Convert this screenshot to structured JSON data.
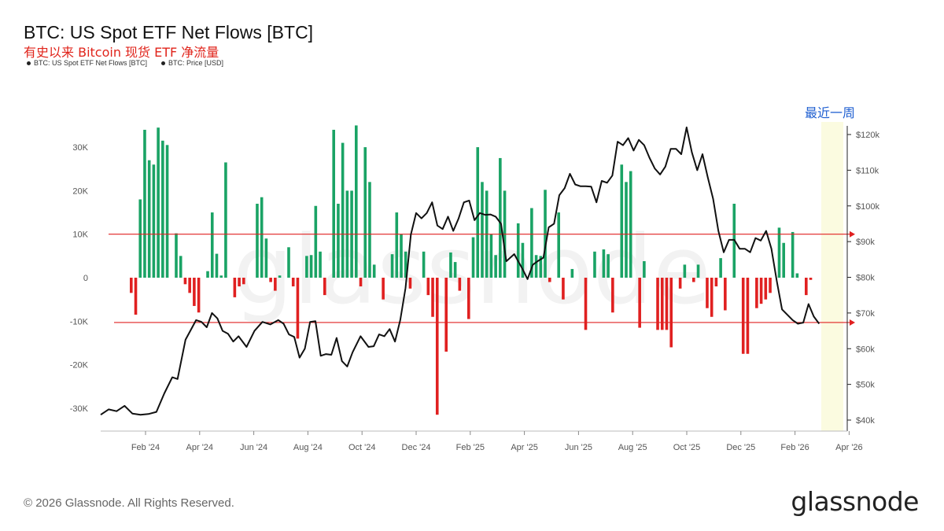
{
  "header": {
    "title": "BTC: US Spot ETF Net Flows [BTC]",
    "subtitle": "有史以来 Bitcoin 现货 ETF 净流量",
    "legend": [
      {
        "label": "BTC: US Spot ETF Net Flows [BTC]",
        "color": "#222222"
      },
      {
        "label": "BTC: Price [USD]",
        "color": "#222222"
      }
    ]
  },
  "annotation": {
    "recent_week": "最近一周"
  },
  "footer": {
    "copyright": "© 2026 Glassnode. All Rights Reserved.",
    "brand": "glassnode"
  },
  "watermark": "glassnode",
  "colors": {
    "inflow": "#1aa365",
    "outflow": "#e02020",
    "price": "#111111",
    "refline": "#e02020",
    "highlight": "#fbfbe0"
  },
  "chart_data": {
    "type": "bar",
    "title": "BTC: US Spot ETF Net Flows [BTC]",
    "x_tick_labels": [
      "Feb '24",
      "Apr '24",
      "Jun '24",
      "Aug '24",
      "Oct '24",
      "Dec '24",
      "Feb '25",
      "Apr '25",
      "Jun '25",
      "Aug '25",
      "Oct '25",
      "Dec '25",
      "Feb '26",
      "Apr '26"
    ],
    "y_left": {
      "ticks": [
        30000,
        20000,
        10000,
        0,
        -10000,
        -20000,
        -30000
      ],
      "tick_labels": [
        "30K",
        "20K",
        "10K",
        "0",
        "-10K",
        "-20K",
        "-30K"
      ],
      "range": [
        -35000,
        36000
      ]
    },
    "y_right": {
      "ticks": [
        120000,
        110000,
        100000,
        90000,
        80000,
        70000,
        60000,
        50000,
        40000
      ],
      "tick_labels": [
        "$120k",
        "$110k",
        "$100k",
        "$90k",
        "$80k",
        "$70k",
        "$60k",
        "$50k",
        "$40k"
      ],
      "range": [
        38000,
        125000
      ]
    },
    "reference_lines_btc": [
      10000,
      -10300
    ],
    "series": [
      {
        "name": "BTC: US Spot ETF Net Flows [BTC]",
        "axis": "left",
        "type": "bar",
        "values": [
          -3500,
          -8500,
          18000,
          34000,
          27000,
          26000,
          34500,
          31500,
          30500,
          0,
          10200,
          5000,
          -1500,
          -3500,
          -6500,
          -8000,
          0,
          1500,
          15000,
          5500,
          500,
          26500,
          0,
          -4500,
          -2000,
          -1500,
          0,
          0,
          17000,
          18500,
          9000,
          -1000,
          -3000,
          500,
          0,
          7000,
          -2000,
          -14000,
          0,
          5000,
          5200,
          16500,
          6000,
          -4000,
          0,
          34000,
          17000,
          31000,
          20000,
          20000,
          35000,
          -2000,
          30000,
          22000,
          3000,
          0,
          -5000,
          0,
          5400,
          15000,
          10000,
          6000,
          -2500,
          0,
          0,
          6000,
          -4000,
          -9000,
          -31500,
          0,
          -17000,
          5800,
          3600,
          -3000,
          0,
          -9500,
          9300,
          30000,
          22000,
          20000,
          10000,
          5200,
          27500,
          20000,
          0,
          0,
          12500,
          8000,
          0,
          16000,
          5200,
          5000,
          20200,
          -1000,
          0,
          15000,
          -5000,
          0,
          2000,
          0,
          0,
          -12000,
          0,
          6000,
          0,
          6500,
          5400,
          -8000,
          0,
          26000,
          22000,
          24500,
          0,
          -11500,
          3800,
          0,
          0,
          -12000,
          -12000,
          -12000,
          -16000,
          0,
          -2500,
          3000,
          0,
          -1000,
          3000,
          0,
          -7000,
          -9000,
          -2000,
          4500,
          -7500,
          0,
          17000,
          0,
          -17500,
          -17500,
          0,
          -7000,
          -6000,
          -5000,
          -3500,
          0,
          11500,
          8000,
          0,
          10500,
          1000,
          0,
          -4000,
          -500
        ]
      },
      {
        "name": "BTC: Price [USD]",
        "axis": "right",
        "type": "line",
        "points": [
          [
            0,
            41500
          ],
          [
            3,
            43000
          ],
          [
            6,
            42500
          ],
          [
            9,
            44000
          ],
          [
            12,
            41800
          ],
          [
            15,
            41500
          ],
          [
            18,
            41700
          ],
          [
            21,
            42300
          ],
          [
            24,
            47500
          ],
          [
            27,
            52000
          ],
          [
            29,
            51500
          ],
          [
            32,
            62500
          ],
          [
            36,
            68000
          ],
          [
            38,
            67500
          ],
          [
            40,
            66000
          ],
          [
            42,
            70000
          ],
          [
            44,
            68500
          ],
          [
            46,
            65000
          ],
          [
            48,
            64200
          ],
          [
            50,
            62000
          ],
          [
            52,
            63500
          ],
          [
            55,
            60500
          ],
          [
            58,
            65000
          ],
          [
            61,
            67500
          ],
          [
            64,
            66800
          ],
          [
            67,
            68000
          ],
          [
            69,
            67000
          ],
          [
            71,
            64000
          ],
          [
            73,
            63300
          ],
          [
            75,
            57500
          ],
          [
            77,
            60000
          ],
          [
            79,
            67500
          ],
          [
            81,
            67700
          ],
          [
            83,
            58000
          ],
          [
            85,
            58500
          ],
          [
            87,
            58300
          ],
          [
            89,
            63000
          ],
          [
            91,
            56500
          ],
          [
            93,
            55000
          ],
          [
            95,
            59000
          ],
          [
            98,
            63500
          ],
          [
            101,
            60500
          ],
          [
            103,
            60700
          ],
          [
            105,
            64000
          ],
          [
            107,
            63500
          ],
          [
            109,
            65500
          ],
          [
            111,
            62000
          ],
          [
            113,
            68000
          ],
          [
            115,
            77000
          ],
          [
            117,
            92000
          ],
          [
            119,
            98000
          ],
          [
            121,
            96500
          ],
          [
            123,
            98000
          ],
          [
            125,
            101000
          ],
          [
            127,
            94500
          ],
          [
            129,
            93500
          ],
          [
            131,
            97000
          ],
          [
            133,
            93000
          ],
          [
            135,
            96500
          ],
          [
            137,
            101000
          ],
          [
            139,
            101500
          ],
          [
            141,
            96000
          ],
          [
            143,
            98000
          ],
          [
            145,
            97500
          ],
          [
            147,
            97600
          ],
          [
            149,
            97000
          ],
          [
            151,
            95000
          ],
          [
            153,
            84500
          ],
          [
            156,
            86500
          ],
          [
            159,
            82500
          ],
          [
            161,
            79500
          ],
          [
            163,
            83500
          ],
          [
            165,
            84600
          ],
          [
            167,
            85500
          ],
          [
            169,
            94000
          ],
          [
            171,
            95000
          ],
          [
            173,
            103000
          ],
          [
            175,
            105000
          ],
          [
            177,
            109000
          ],
          [
            179,
            106000
          ],
          [
            181,
            105500
          ],
          [
            183,
            105500
          ],
          [
            185,
            105400
          ],
          [
            187,
            101000
          ],
          [
            189,
            107000
          ],
          [
            191,
            106500
          ],
          [
            193,
            108500
          ],
          [
            195,
            118000
          ],
          [
            197,
            117000
          ],
          [
            199,
            119000
          ],
          [
            201,
            115500
          ],
          [
            203,
            118500
          ],
          [
            205,
            117000
          ],
          [
            207,
            113500
          ],
          [
            209,
            110500
          ],
          [
            211,
            108800
          ],
          [
            213,
            111000
          ],
          [
            215,
            116000
          ],
          [
            217,
            116000
          ],
          [
            219,
            114500
          ],
          [
            221,
            122000
          ],
          [
            223,
            115000
          ],
          [
            225,
            110000
          ],
          [
            227,
            114500
          ],
          [
            229,
            108000
          ],
          [
            231,
            102000
          ],
          [
            233,
            93000
          ],
          [
            235,
            87000
          ],
          [
            237,
            90500
          ],
          [
            239,
            90500
          ],
          [
            241,
            88000
          ],
          [
            243,
            88000
          ],
          [
            245,
            87000
          ],
          [
            247,
            91000
          ],
          [
            249,
            90300
          ],
          [
            251,
            93000
          ],
          [
            253,
            88000
          ],
          [
            255,
            79000
          ],
          [
            257,
            71000
          ],
          [
            259,
            69500
          ],
          [
            261,
            68000
          ],
          [
            263,
            67000
          ],
          [
            265,
            67300
          ],
          [
            267,
            72500
          ],
          [
            269,
            69000
          ],
          [
            271,
            67000
          ]
        ]
      }
    ],
    "x_range": [
      0,
      280
    ],
    "grid": false,
    "legend_position": "top-left"
  }
}
